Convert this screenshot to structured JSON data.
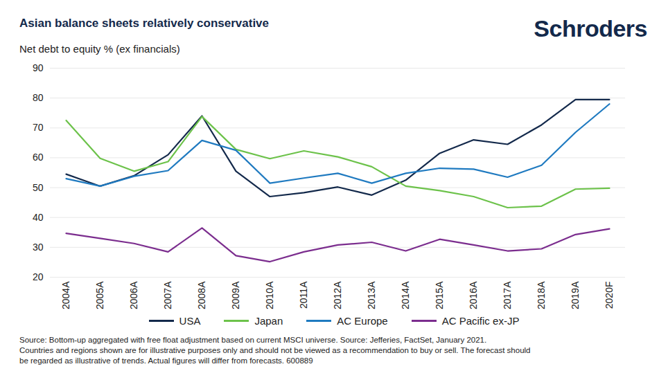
{
  "chart_data": {
    "type": "line",
    "title": "Asian balance sheets relatively conservative",
    "logo": "Schroders",
    "subtitle": "Net debt to equity % (ex financials)",
    "categories": [
      "2004A",
      "2005A",
      "2006A",
      "2007A",
      "2008A",
      "2009A",
      "2010A",
      "2011A",
      "2012A",
      "2013A",
      "2014A",
      "2015A",
      "2016A",
      "2017A",
      "2018A",
      "2019A",
      "2020F"
    ],
    "series": [
      {
        "name": "USA",
        "color": "#13294b",
        "values": [
          54.5,
          50.5,
          54,
          61,
          74,
          55.5,
          47,
          48.3,
          50.2,
          47.5,
          52.5,
          61.5,
          66,
          64.5,
          71,
          79.5,
          79.5
        ]
      },
      {
        "name": "Japan",
        "color": "#6cc24a",
        "values": [
          72.5,
          59.8,
          55.5,
          58.7,
          73.8,
          62.8,
          59.7,
          62.3,
          60.3,
          57,
          50.5,
          49,
          47,
          43.3,
          43.8,
          49.5,
          49.8
        ]
      },
      {
        "name": "AC Europe",
        "color": "#1f7ac0",
        "values": [
          53,
          50.5,
          53.8,
          55.7,
          65.8,
          62.5,
          51.5,
          53.2,
          54.8,
          51.5,
          54.8,
          56.5,
          56.2,
          53.5,
          57.5,
          68.5,
          78
        ]
      },
      {
        "name": "AC Pacific ex-JP",
        "color": "#7b2d8e",
        "values": [
          34.7,
          33,
          31.3,
          28.5,
          36.5,
          27.2,
          25.2,
          28.5,
          30.8,
          31.7,
          28.8,
          32.7,
          30.8,
          28.8,
          29.5,
          34.3,
          36.2
        ]
      }
    ],
    "ylim": [
      20,
      90
    ],
    "yticks": [
      20,
      30,
      40,
      50,
      60,
      70,
      80,
      90
    ],
    "grid": true,
    "legend": "bottom",
    "footnotes": [
      "Source: Bottom-up aggregated with free float adjustment based on current MSCI universe. Source: Jefferies, FactSet, January 2021.",
      "Countries and regions shown are for illustrative purposes only and should not be viewed as a recommendation to buy or sell. The forecast should",
      "be regarded as illustrative of trends. Actual figures will differ from forecasts. 600889"
    ]
  }
}
